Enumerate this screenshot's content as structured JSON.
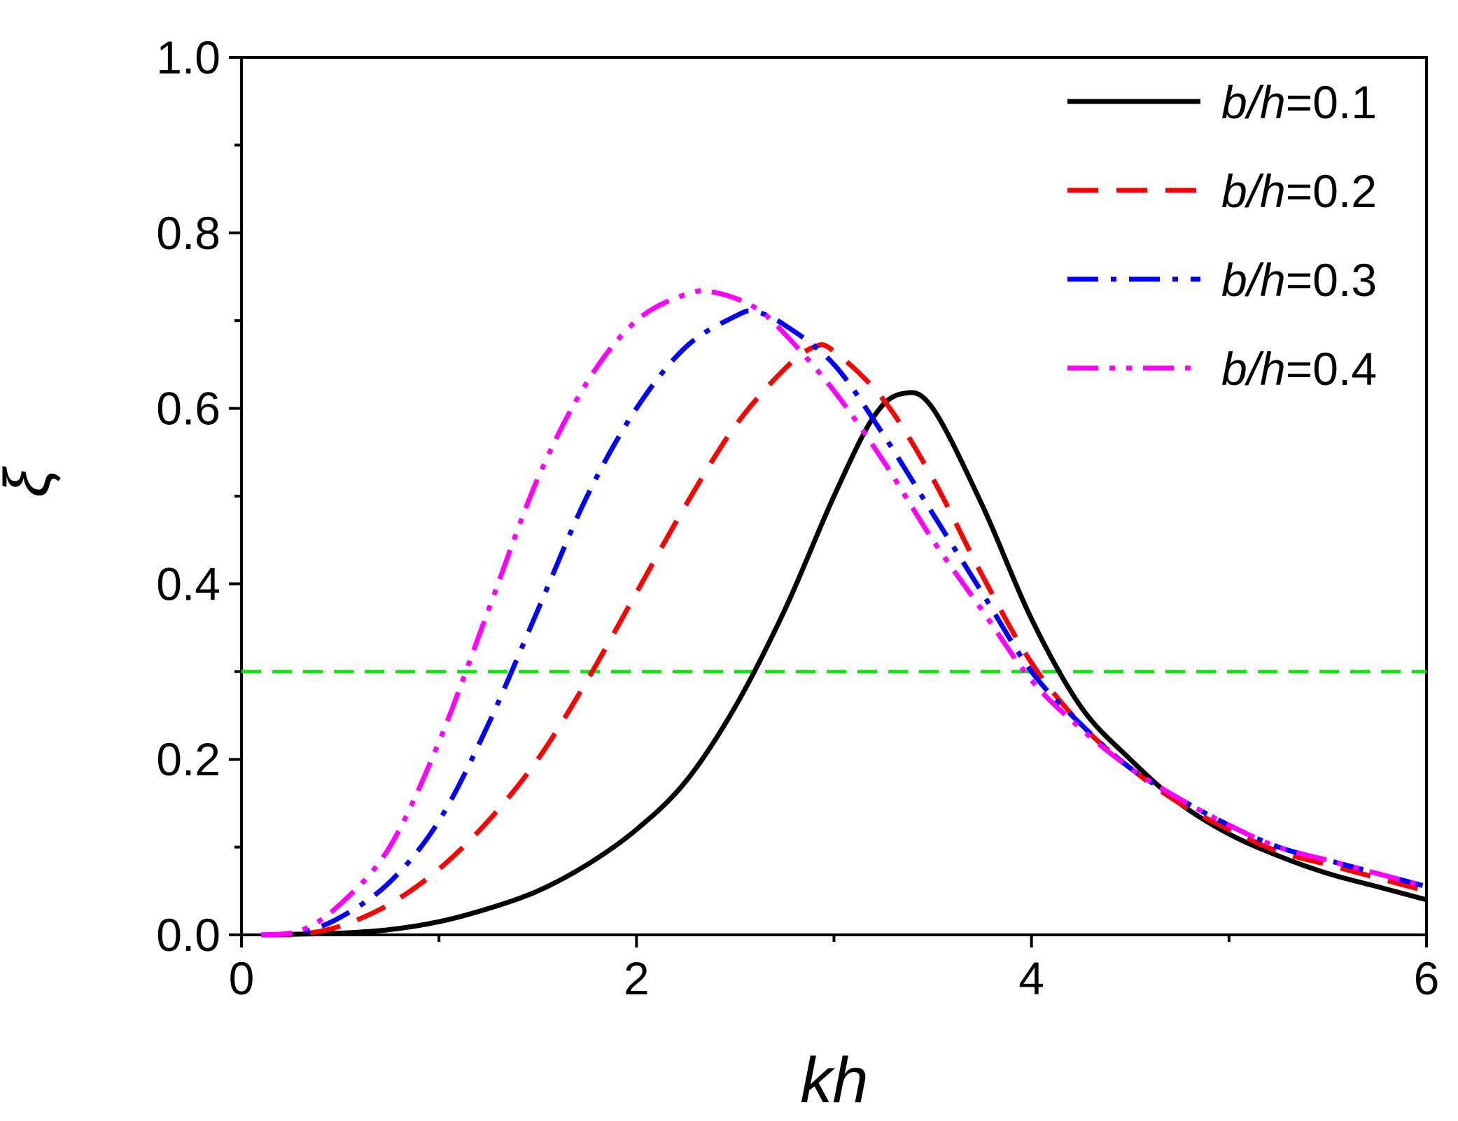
{
  "chart_data": {
    "type": "line",
    "title": "",
    "xlabel": "kh",
    "ylabel": "ξ",
    "xlim": [
      0,
      6
    ],
    "ylim": [
      0,
      1.0
    ],
    "x_ticks": [
      "0",
      "2",
      "4",
      "6"
    ],
    "x_tick_values": [
      0,
      2,
      4,
      6
    ],
    "x_minor_ticks": [
      1,
      3,
      5
    ],
    "y_ticks": [
      "0.0",
      "0.2",
      "0.4",
      "0.6",
      "0.8",
      "1.0"
    ],
    "y_tick_values": [
      0,
      0.2,
      0.4,
      0.6,
      0.8,
      1.0
    ],
    "y_minor_ticks": [
      0.1,
      0.3,
      0.5,
      0.7,
      0.9
    ],
    "grid": false,
    "legend_position": "top-right",
    "reference_line": {
      "y": 0.3,
      "color": "#00ee00",
      "style": "dashed"
    },
    "series": [
      {
        "name_prefix": "b/h",
        "name_value": "=0.1",
        "color": "#000000",
        "style": "solid",
        "points": [
          [
            0.1,
            0.0
          ],
          [
            0.5,
            0.002
          ],
          [
            0.75,
            0.006
          ],
          [
            1.0,
            0.015
          ],
          [
            1.25,
            0.03
          ],
          [
            1.5,
            0.05
          ],
          [
            1.75,
            0.08
          ],
          [
            2.0,
            0.12
          ],
          [
            2.25,
            0.175
          ],
          [
            2.5,
            0.26
          ],
          [
            2.75,
            0.37
          ],
          [
            3.0,
            0.5
          ],
          [
            3.2,
            0.59
          ],
          [
            3.35,
            0.617
          ],
          [
            3.5,
            0.6
          ],
          [
            3.75,
            0.49
          ],
          [
            4.0,
            0.36
          ],
          [
            4.25,
            0.26
          ],
          [
            4.5,
            0.2
          ],
          [
            4.75,
            0.15
          ],
          [
            5.0,
            0.115
          ],
          [
            5.25,
            0.09
          ],
          [
            5.5,
            0.07
          ],
          [
            5.75,
            0.055
          ],
          [
            6.0,
            0.04
          ]
        ]
      },
      {
        "name_prefix": "b/h",
        "name_value": "=0.2",
        "color": "#ff0000",
        "style": "dashed",
        "points": [
          [
            0.1,
            0.0
          ],
          [
            0.3,
            0.001
          ],
          [
            0.5,
            0.01
          ],
          [
            0.75,
            0.035
          ],
          [
            1.0,
            0.075
          ],
          [
            1.25,
            0.13
          ],
          [
            1.5,
            0.2
          ],
          [
            1.75,
            0.29
          ],
          [
            2.0,
            0.39
          ],
          [
            2.25,
            0.49
          ],
          [
            2.5,
            0.58
          ],
          [
            2.75,
            0.645
          ],
          [
            2.9,
            0.67
          ],
          [
            3.0,
            0.665
          ],
          [
            3.25,
            0.61
          ],
          [
            3.5,
            0.52
          ],
          [
            3.75,
            0.41
          ],
          [
            4.0,
            0.31
          ],
          [
            4.25,
            0.24
          ],
          [
            4.5,
            0.19
          ],
          [
            4.75,
            0.15
          ],
          [
            5.0,
            0.12
          ],
          [
            5.25,
            0.095
          ],
          [
            5.5,
            0.08
          ],
          [
            5.75,
            0.065
          ],
          [
            6.0,
            0.05
          ]
        ]
      },
      {
        "name_prefix": "b/h",
        "name_value": "=0.3",
        "color": "#0000ff",
        "style": "dashdot",
        "points": [
          [
            0.1,
            0.0
          ],
          [
            0.3,
            0.003
          ],
          [
            0.5,
            0.02
          ],
          [
            0.75,
            0.06
          ],
          [
            1.0,
            0.13
          ],
          [
            1.25,
            0.24
          ],
          [
            1.5,
            0.37
          ],
          [
            1.75,
            0.5
          ],
          [
            2.0,
            0.6
          ],
          [
            2.25,
            0.67
          ],
          [
            2.5,
            0.705
          ],
          [
            2.6,
            0.71
          ],
          [
            2.75,
            0.695
          ],
          [
            3.0,
            0.65
          ],
          [
            3.25,
            0.57
          ],
          [
            3.5,
            0.48
          ],
          [
            3.75,
            0.39
          ],
          [
            4.0,
            0.3
          ],
          [
            4.25,
            0.24
          ],
          [
            4.5,
            0.19
          ],
          [
            4.75,
            0.155
          ],
          [
            5.0,
            0.125
          ],
          [
            5.25,
            0.1
          ],
          [
            5.5,
            0.085
          ],
          [
            5.75,
            0.07
          ],
          [
            6.0,
            0.055
          ]
        ]
      },
      {
        "name_prefix": "b/h",
        "name_value": "=0.4",
        "color": "#ff00ff",
        "style": "dashdotdot",
        "points": [
          [
            0.1,
            0.0
          ],
          [
            0.3,
            0.005
          ],
          [
            0.5,
            0.035
          ],
          [
            0.75,
            0.1
          ],
          [
            1.0,
            0.22
          ],
          [
            1.25,
            0.37
          ],
          [
            1.5,
            0.52
          ],
          [
            1.75,
            0.63
          ],
          [
            2.0,
            0.7
          ],
          [
            2.25,
            0.73
          ],
          [
            2.4,
            0.732
          ],
          [
            2.6,
            0.715
          ],
          [
            2.75,
            0.685
          ],
          [
            3.0,
            0.62
          ],
          [
            3.25,
            0.54
          ],
          [
            3.5,
            0.45
          ],
          [
            3.75,
            0.37
          ],
          [
            4.0,
            0.29
          ],
          [
            4.25,
            0.235
          ],
          [
            4.5,
            0.19
          ],
          [
            4.75,
            0.155
          ],
          [
            5.0,
            0.125
          ],
          [
            5.25,
            0.1
          ],
          [
            5.5,
            0.085
          ],
          [
            5.75,
            0.07
          ],
          [
            6.0,
            0.055
          ]
        ]
      }
    ]
  }
}
